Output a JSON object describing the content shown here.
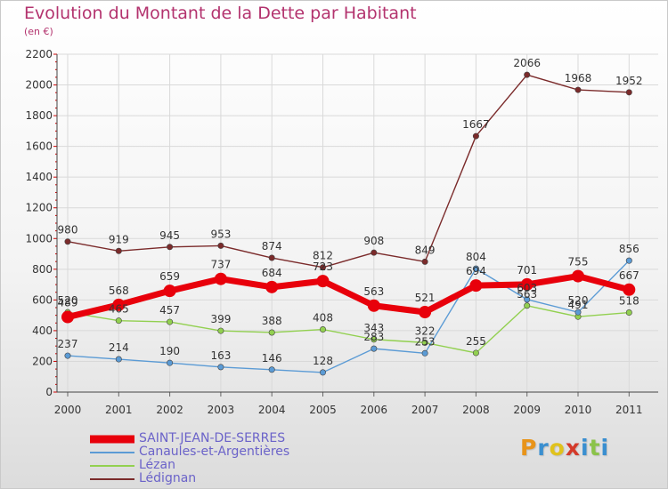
{
  "header": {
    "title": "Evolution du Montant de la Dette par Habitant",
    "subtitle": "(en €)"
  },
  "logo": {
    "letters": [
      "P",
      "r",
      "o",
      "x",
      "i",
      "t",
      "i"
    ],
    "colors": [
      "#e8941a",
      "#3a8fd0",
      "#e0c21c",
      "#d43a2a",
      "#3a8fd0",
      "#8bc34a",
      "#3a8fd0"
    ]
  },
  "chart_data": {
    "type": "line",
    "title": "Evolution du Montant de la Dette par Habitant",
    "subtitle": "(en €)",
    "xlabel": "",
    "ylabel": "",
    "categories": [
      "2000",
      "2001",
      "2002",
      "2003",
      "2004",
      "2005",
      "2006",
      "2007",
      "2008",
      "2009",
      "2010",
      "2011"
    ],
    "ylim": [
      0,
      2200
    ],
    "yticks": [
      0,
      200,
      400,
      600,
      800,
      1000,
      1200,
      1400,
      1600,
      1800,
      2000,
      2200
    ],
    "legend_position": "bottom-left",
    "series": [
      {
        "name": "SAINT-JEAN-DE-SERRES",
        "color": "#e8000b",
        "values": [
          489,
          568,
          659,
          737,
          684,
          723,
          563,
          521,
          694,
          701,
          755,
          667
        ]
      },
      {
        "name": "Canaules-et-Argentières",
        "color": "#5b9bd5",
        "values": [
          237,
          214,
          190,
          163,
          146,
          128,
          283,
          253,
          804,
          603,
          520,
          856
        ]
      },
      {
        "name": "Lézan",
        "color": "#92d050",
        "values": [
          520,
          465,
          457,
          399,
          388,
          408,
          343,
          322,
          255,
          563,
          491,
          518
        ]
      },
      {
        "name": "Lédignan",
        "color": "#7b2b2b",
        "values": [
          980,
          919,
          945,
          953,
          874,
          812,
          908,
          849,
          1667,
          2066,
          1968,
          1952
        ]
      }
    ]
  }
}
